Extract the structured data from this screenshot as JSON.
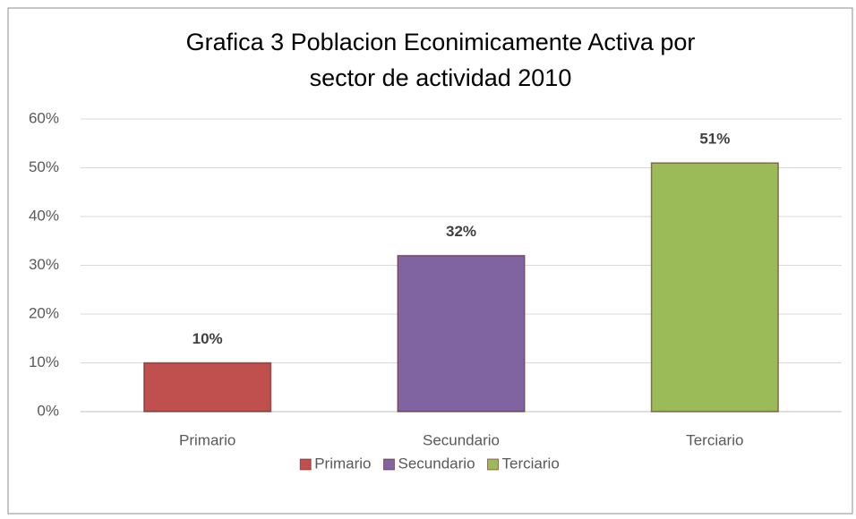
{
  "chart_data": {
    "type": "bar",
    "title": [
      "Grafica 3 Poblacion Econimicamente Activa  por",
      "sector de actividad 2010"
    ],
    "categories": [
      "Primario",
      "Secundario",
      "Terciario"
    ],
    "values": [
      10,
      32,
      51
    ],
    "value_labels": [
      "10%",
      "32%",
      "51%"
    ],
    "colors": [
      "#c0504d",
      "#8064a2",
      "#9bbb59"
    ],
    "ylim": [
      0,
      60
    ],
    "yticks": [
      {
        "value": 0,
        "label": "0%"
      },
      {
        "value": 10,
        "label": "10%"
      },
      {
        "value": 20,
        "label": "20%"
      },
      {
        "value": 30,
        "label": "30%"
      },
      {
        "value": 40,
        "label": "40%"
      },
      {
        "value": 50,
        "label": "50%"
      },
      {
        "value": 60,
        "label": "60%"
      }
    ],
    "grid": true,
    "legend": "bottom"
  }
}
